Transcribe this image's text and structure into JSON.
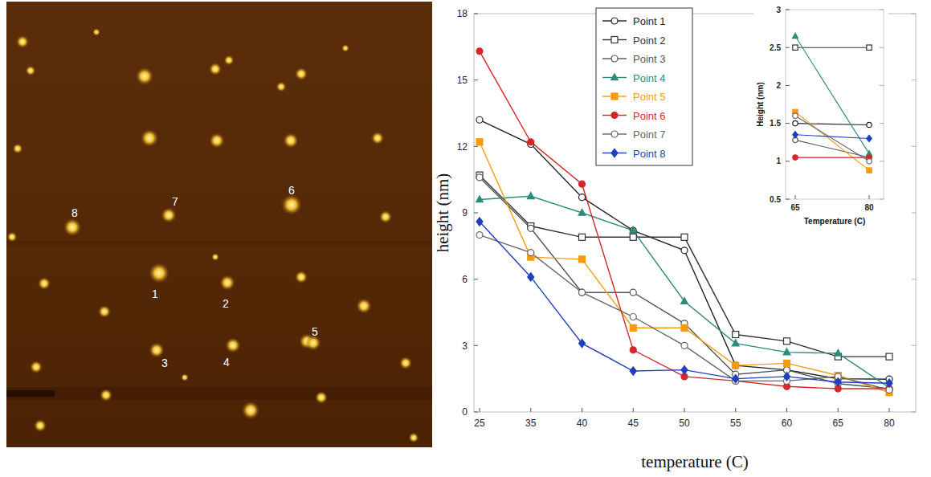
{
  "image": {
    "labels": [
      "8",
      "7",
      "6",
      "1",
      "2",
      "3",
      "4",
      "5"
    ]
  },
  "chart_data": [
    {
      "type": "line",
      "x_label": "temperature (C)",
      "y_label": "height (nm)",
      "categories": [
        "25",
        "35",
        "40",
        "45",
        "50",
        "55",
        "60",
        "65",
        "80"
      ],
      "ylim": [
        0,
        18
      ],
      "yticks": [
        0,
        3,
        6,
        9,
        12,
        15,
        18
      ],
      "grid": false,
      "legend": "top-left",
      "series": [
        {
          "name": "Point 1",
          "color": "#222222",
          "marker": "circle-open",
          "values": [
            13.2,
            12.1,
            9.7,
            8.2,
            7.3,
            2.1,
            1.9,
            1.5,
            1.48
          ]
        },
        {
          "name": "Point 2",
          "color": "#333333",
          "marker": "square-open",
          "values": [
            10.7,
            8.4,
            7.9,
            7.9,
            7.9,
            3.5,
            3.2,
            2.5,
            2.5
          ]
        },
        {
          "name": "Point 3",
          "color": "#555555",
          "marker": "circle-open",
          "values": [
            10.6,
            8.3,
            5.4,
            5.4,
            4.0,
            1.7,
            1.9,
            1.28,
            1.05
          ]
        },
        {
          "name": "Point 4",
          "color": "#2e8b7a",
          "marker": "triangle",
          "values": [
            9.6,
            9.75,
            9.0,
            8.2,
            5.0,
            3.1,
            2.7,
            2.65,
            1.1
          ]
        },
        {
          "name": "Point 5",
          "color": "#f39c12",
          "marker": "square",
          "values": [
            12.2,
            7.0,
            6.9,
            3.8,
            3.8,
            2.1,
            2.2,
            1.65,
            0.88
          ]
        },
        {
          "name": "Point 6",
          "color": "#d62728",
          "marker": "circle",
          "values": [
            16.3,
            12.2,
            10.3,
            2.8,
            1.6,
            1.4,
            1.15,
            1.05,
            1.05
          ]
        },
        {
          "name": "Point 7",
          "color": "#666666",
          "marker": "circle-open",
          "values": [
            8.0,
            7.2,
            5.4,
            4.3,
            3.0,
            1.4,
            1.4,
            1.6,
            1.0
          ]
        },
        {
          "name": "Point 8",
          "color": "#1f3fbf",
          "marker": "diamond",
          "values": [
            8.6,
            6.1,
            3.1,
            1.85,
            1.9,
            1.5,
            1.6,
            1.35,
            1.3
          ]
        }
      ]
    },
    {
      "type": "line",
      "x_label": "Temperature (C)",
      "y_label": "Height (nm)",
      "categories": [
        "65",
        "80"
      ],
      "ylim": [
        0.5,
        3
      ],
      "yticks": [
        0.5,
        1,
        1.5,
        2,
        2.5,
        3
      ],
      "grid": false,
      "series": [
        {
          "color": "#222222",
          "marker": "circle-open",
          "values": [
            1.5,
            1.48
          ]
        },
        {
          "color": "#333333",
          "marker": "square-open",
          "values": [
            2.5,
            2.5
          ]
        },
        {
          "color": "#555555",
          "marker": "circle-open",
          "values": [
            1.28,
            1.05
          ]
        },
        {
          "color": "#2e8b7a",
          "marker": "triangle",
          "values": [
            2.65,
            1.1
          ]
        },
        {
          "color": "#f39c12",
          "marker": "square",
          "values": [
            1.65,
            0.88
          ]
        },
        {
          "color": "#d62728",
          "marker": "circle",
          "values": [
            1.05,
            1.05
          ]
        },
        {
          "color": "#666666",
          "marker": "circle-open",
          "values": [
            1.6,
            1.0
          ]
        },
        {
          "color": "#1f3fbf",
          "marker": "diamond",
          "values": [
            1.35,
            1.3
          ]
        }
      ]
    }
  ]
}
